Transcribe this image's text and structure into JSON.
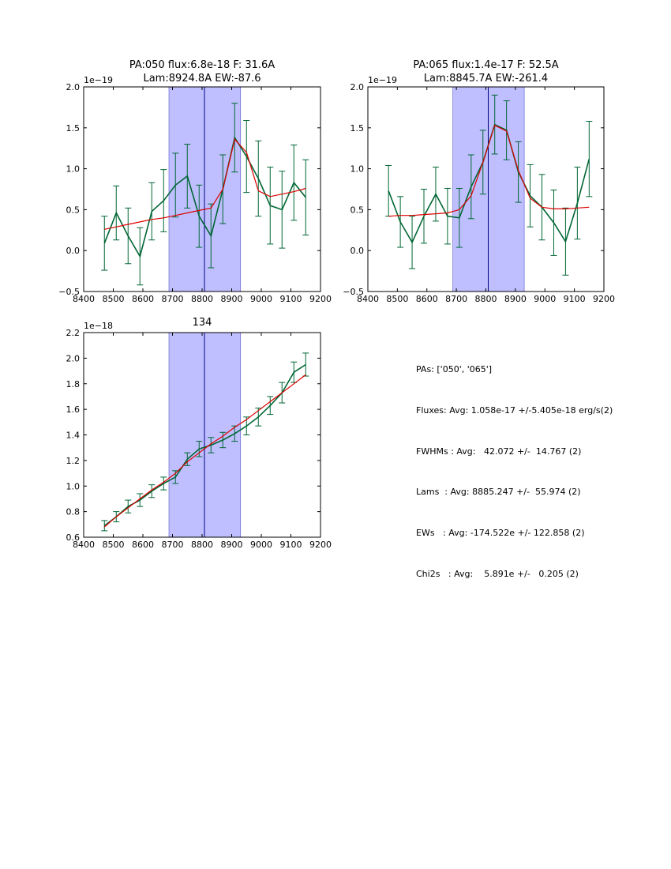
{
  "chart_data": [
    {
      "type": "line",
      "title_line1": "PA:050 flux:6.8e-18 F: 31.6A",
      "title_line2": "Lam:8924.8A EW:-87.6",
      "exponent_label": "1e−19",
      "xlim": [
        8400,
        9200
      ],
      "ylim": [
        -0.5,
        2.0
      ],
      "xticks": [
        "8400",
        "8500",
        "8600",
        "8700",
        "8800",
        "8900",
        "9000",
        "9100",
        "9200"
      ],
      "yticks": [
        "−0.5",
        "0.0",
        "0.5",
        "1.0",
        "1.5",
        "2.0"
      ],
      "band": [
        8688,
        8930
      ],
      "vline": 8808,
      "series": [
        {
          "name": "data",
          "color": "#006633",
          "x": [
            8470,
            8510,
            8550,
            8590,
            8630,
            8670,
            8710,
            8750,
            8790,
            8830,
            8870,
            8910,
            8950,
            8990,
            9030,
            9070,
            9110,
            9150
          ],
          "y": [
            0.09,
            0.46,
            0.18,
            -0.07,
            0.48,
            0.61,
            0.8,
            0.91,
            0.42,
            0.18,
            0.75,
            1.38,
            1.15,
            0.88,
            0.55,
            0.5,
            0.83,
            0.65
          ],
          "err": [
            0.33,
            0.33,
            0.34,
            0.35,
            0.35,
            0.38,
            0.39,
            0.39,
            0.38,
            0.39,
            0.42,
            0.42,
            0.44,
            0.46,
            0.47,
            0.47,
            0.46,
            0.46
          ]
        },
        {
          "name": "fit",
          "color": "#dd0000",
          "x": [
            8470,
            8510,
            8550,
            8590,
            8630,
            8670,
            8710,
            8750,
            8790,
            8830,
            8870,
            8910,
            8950,
            8990,
            9030,
            9070,
            9110,
            9150
          ],
          "y": [
            0.26,
            0.29,
            0.32,
            0.35,
            0.38,
            0.4,
            0.43,
            0.46,
            0.49,
            0.52,
            0.75,
            1.36,
            1.2,
            0.73,
            0.66,
            0.69,
            0.72,
            0.76
          ]
        }
      ]
    },
    {
      "type": "line",
      "title_line1": "PA:065 flux:1.4e-17 F: 52.5A",
      "title_line2": "Lam:8845.7A EW:-261.4",
      "exponent_label": "1e−19",
      "xlim": [
        8400,
        9200
      ],
      "ylim": [
        -0.5,
        2.0
      ],
      "xticks": [
        "8400",
        "8500",
        "8600",
        "8700",
        "8800",
        "8900",
        "9000",
        "9100",
        "9200"
      ],
      "yticks": [
        "−0.5",
        "0.0",
        "0.5",
        "1.0",
        "1.5",
        "2.0"
      ],
      "band": [
        8688,
        8930
      ],
      "vline": 8808,
      "series": [
        {
          "name": "data",
          "color": "#006633",
          "x": [
            8470,
            8510,
            8550,
            8590,
            8630,
            8670,
            8710,
            8750,
            8790,
            8830,
            8870,
            8910,
            8950,
            8990,
            9030,
            9070,
            9110,
            9150
          ],
          "y": [
            0.73,
            0.35,
            0.1,
            0.42,
            0.69,
            0.42,
            0.4,
            0.78,
            1.08,
            1.54,
            1.47,
            0.96,
            0.67,
            0.53,
            0.34,
            0.11,
            0.58,
            1.12
          ],
          "err": [
            0.31,
            0.31,
            0.32,
            0.33,
            0.33,
            0.34,
            0.36,
            0.39,
            0.39,
            0.36,
            0.36,
            0.37,
            0.38,
            0.4,
            0.4,
            0.41,
            0.44,
            0.46
          ]
        },
        {
          "name": "fit",
          "color": "#dd0000",
          "x": [
            8470,
            8510,
            8550,
            8590,
            8630,
            8670,
            8710,
            8750,
            8790,
            8830,
            8870,
            8910,
            8950,
            8990,
            9030,
            9070,
            9110,
            9150
          ],
          "y": [
            0.42,
            0.43,
            0.43,
            0.44,
            0.45,
            0.46,
            0.5,
            0.67,
            1.08,
            1.53,
            1.46,
            0.98,
            0.64,
            0.53,
            0.51,
            0.51,
            0.52,
            0.53
          ]
        }
      ]
    },
    {
      "type": "line",
      "title_line1": "134",
      "title_line2": "",
      "exponent_label": "1e−18",
      "xlim": [
        8400,
        9200
      ],
      "ylim": [
        0.6,
        2.2
      ],
      "xticks": [
        "8400",
        "8500",
        "8600",
        "8700",
        "8800",
        "8900",
        "9000",
        "9100",
        "9200"
      ],
      "yticks": [
        "0.6",
        "0.8",
        "1.0",
        "1.2",
        "1.4",
        "1.6",
        "1.8",
        "2.0",
        "2.2"
      ],
      "band": [
        8688,
        8930
      ],
      "vline": 8808,
      "series": [
        {
          "name": "data",
          "color": "#006633",
          "x": [
            8470,
            8510,
            8550,
            8590,
            8630,
            8670,
            8710,
            8750,
            8790,
            8830,
            8870,
            8910,
            8950,
            8990,
            9030,
            9070,
            9110,
            9150
          ],
          "y": [
            0.69,
            0.76,
            0.84,
            0.89,
            0.96,
            1.02,
            1.07,
            1.21,
            1.29,
            1.32,
            1.36,
            1.41,
            1.47,
            1.54,
            1.63,
            1.73,
            1.89,
            1.95
          ],
          "err": [
            0.04,
            0.04,
            0.05,
            0.05,
            0.05,
            0.05,
            0.05,
            0.05,
            0.06,
            0.06,
            0.06,
            0.06,
            0.07,
            0.07,
            0.07,
            0.08,
            0.08,
            0.09
          ]
        },
        {
          "name": "fit",
          "color": "#dd0000",
          "x": [
            8470,
            8510,
            8550,
            8590,
            8630,
            8670,
            8710,
            8750,
            8790,
            8830,
            8870,
            8910,
            8950,
            8990,
            9030,
            9070,
            9110,
            9150
          ],
          "y": [
            0.68,
            0.76,
            0.83,
            0.9,
            0.97,
            1.03,
            1.1,
            1.19,
            1.26,
            1.33,
            1.39,
            1.46,
            1.52,
            1.59,
            1.66,
            1.73,
            1.8,
            1.87
          ]
        }
      ]
    }
  ],
  "summary": {
    "pas": "PAs: ['050', '065']",
    "fluxes": "Fluxes: Avg: 1.058e-17 +/-5.405e-18 erg/s(2)",
    "fwhms": "FWHMs : Avg:   42.072 +/-  14.767 (2)",
    "lams": "Lams  : Avg: 8885.247 +/-  55.974 (2)",
    "ews": "EWs   : Avg: -174.522e +/- 122.858 (2)",
    "chi2s": "Chi2s   : Avg:    5.891e +/-   0.205 (2)"
  }
}
